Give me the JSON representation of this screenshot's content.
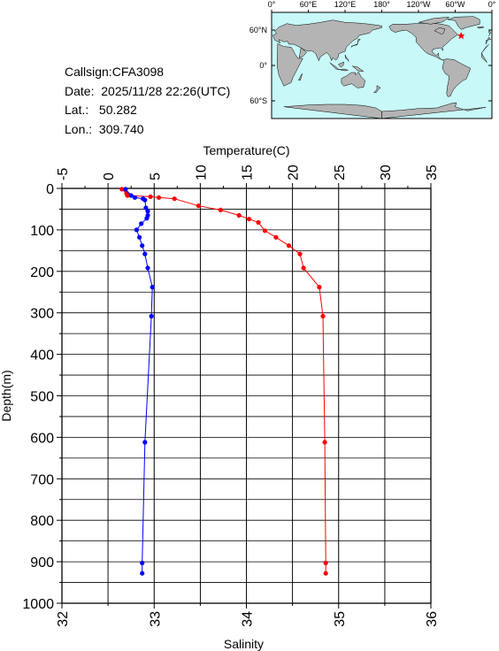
{
  "station": {
    "callsign_label": "Callsign:",
    "callsign": "CFA3098",
    "date_label": "Date:",
    "date": "2025/11/28 22:26(UTC)",
    "lat_label": "Lat.:",
    "lat": "50.282",
    "lon_label": "Lon.:",
    "lon": "309.740"
  },
  "map": {
    "lon_labels": [
      "0°",
      "60°E",
      "120°E",
      "180°",
      "120°W",
      "60°W",
      "0°"
    ],
    "lat_labels": [
      "60°N",
      "0°",
      "60°S"
    ],
    "marker_lat": 50.282,
    "marker_lon": 309.74,
    "ocean_color": "#c8f8f8",
    "land_color": "#b4b4b4",
    "marker_color": "#ff0000"
  },
  "chart_data": {
    "type": "line",
    "title": "",
    "top_axis_label": "Temperature(C)",
    "top_axis_range": [
      -5,
      35
    ],
    "top_ticks": [
      "-5",
      "0",
      "5",
      "10",
      "15",
      "20",
      "25",
      "30",
      "35"
    ],
    "bottom_axis_label": "Salinity",
    "bottom_axis_range": [
      32,
      36
    ],
    "bottom_ticks": [
      "32",
      "33",
      "34",
      "35",
      "36"
    ],
    "y_axis_label": "Depth(m)",
    "y_axis_range": [
      0,
      1000
    ],
    "y_inverted": true,
    "y_ticks": [
      "0",
      "100",
      "200",
      "300",
      "400",
      "500",
      "600",
      "700",
      "800",
      "900",
      "1000"
    ],
    "grid": true,
    "series": [
      {
        "quantity": "temperature",
        "axis": "top",
        "color": "#ff0000",
        "points": [
          {
            "depth": 2,
            "value": 1.5
          },
          {
            "depth": 12,
            "value": 2.0
          },
          {
            "depth": 17,
            "value": 2.1
          },
          {
            "depth": 20,
            "value": 4.6
          },
          {
            "depth": 22,
            "value": 5.5
          },
          {
            "depth": 25,
            "value": 7.2
          },
          {
            "depth": 42,
            "value": 9.8
          },
          {
            "depth": 52,
            "value": 12.2
          },
          {
            "depth": 65,
            "value": 14.2
          },
          {
            "depth": 74,
            "value": 15.3
          },
          {
            "depth": 82,
            "value": 16.3
          },
          {
            "depth": 102,
            "value": 17.0
          },
          {
            "depth": 118,
            "value": 18.2
          },
          {
            "depth": 138,
            "value": 19.6
          },
          {
            "depth": 158,
            "value": 20.8
          },
          {
            "depth": 192,
            "value": 21.2
          },
          {
            "depth": 238,
            "value": 22.9
          },
          {
            "depth": 308,
            "value": 23.3
          },
          {
            "depth": 612,
            "value": 23.5
          },
          {
            "depth": 903,
            "value": 23.6
          },
          {
            "depth": 928,
            "value": 23.6
          }
        ]
      },
      {
        "quantity": "salinity",
        "axis": "bottom",
        "color": "#0000ff",
        "points": [
          {
            "depth": 2,
            "value": 32.69
          },
          {
            "depth": 17,
            "value": 32.75
          },
          {
            "depth": 22,
            "value": 32.79
          },
          {
            "depth": 25,
            "value": 32.88
          },
          {
            "depth": 28,
            "value": 32.9
          },
          {
            "depth": 47,
            "value": 32.91
          },
          {
            "depth": 55,
            "value": 32.93
          },
          {
            "depth": 65,
            "value": 32.93
          },
          {
            "depth": 72,
            "value": 32.92
          },
          {
            "depth": 85,
            "value": 32.86
          },
          {
            "depth": 100,
            "value": 32.81
          },
          {
            "depth": 118,
            "value": 32.84
          },
          {
            "depth": 138,
            "value": 32.87
          },
          {
            "depth": 158,
            "value": 32.9
          },
          {
            "depth": 192,
            "value": 32.93
          },
          {
            "depth": 238,
            "value": 32.98
          },
          {
            "depth": 308,
            "value": 32.97
          },
          {
            "depth": 612,
            "value": 32.9
          },
          {
            "depth": 903,
            "value": 32.87
          },
          {
            "depth": 928,
            "value": 32.87
          }
        ]
      }
    ]
  }
}
